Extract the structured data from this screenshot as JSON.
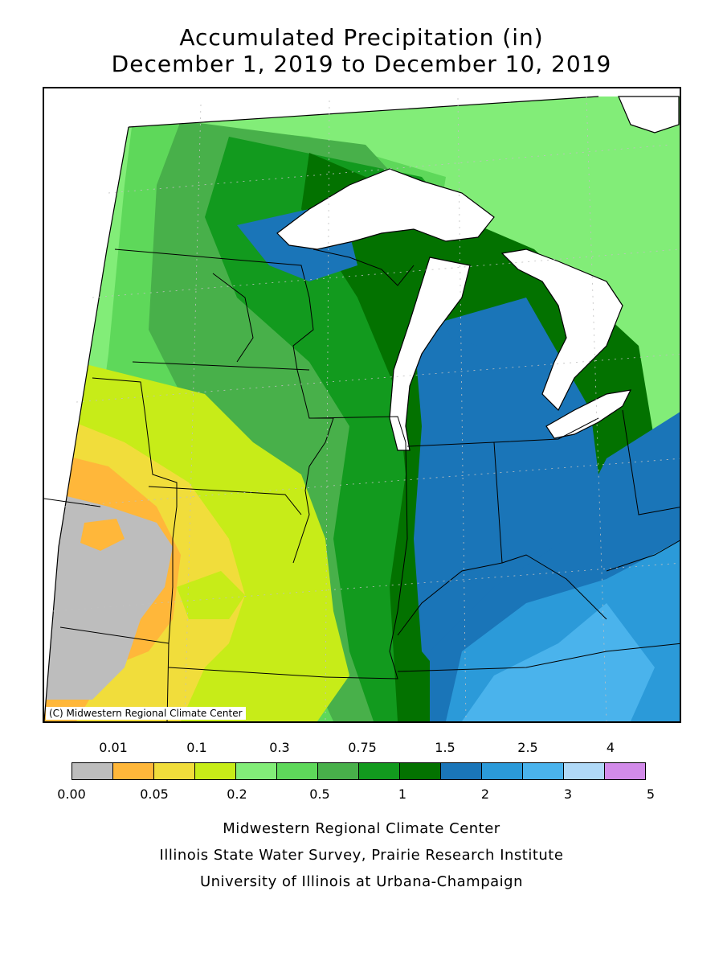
{
  "title": {
    "line1": "Accumulated Precipitation (in)",
    "line2": "December 1, 2019 to December 10, 2019"
  },
  "map": {
    "copyright": "(C) Midwestern Regional Climate Center",
    "water_color": "#ffffff",
    "border_color": "#000000",
    "grid_color": "#c0c0c0"
  },
  "legend": {
    "upper_labels": [
      "0.01",
      "0.1",
      "0.3",
      "0.75",
      "1.5",
      "2.5",
      "4"
    ],
    "lower_labels": [
      "0.00",
      "0.05",
      "0.2",
      "0.5",
      "1",
      "2",
      "3",
      "5"
    ],
    "colors": [
      "#bdbdbd",
      "#ffb73a",
      "#f1dd3b",
      "#c7ec18",
      "#82ed78",
      "#5ed85a",
      "#48b04a",
      "#129a1e",
      "#037200",
      "#1a75b8",
      "#2b9ad9",
      "#4ab3ec",
      "#b0d9f7",
      "#d28be9"
    ]
  },
  "credits": {
    "line1": "Midwestern Regional Climate Center",
    "line2": "Illinois State Water Survey, Prairie Research Institute",
    "line3": "University of Illinois at Urbana-Champaign"
  }
}
